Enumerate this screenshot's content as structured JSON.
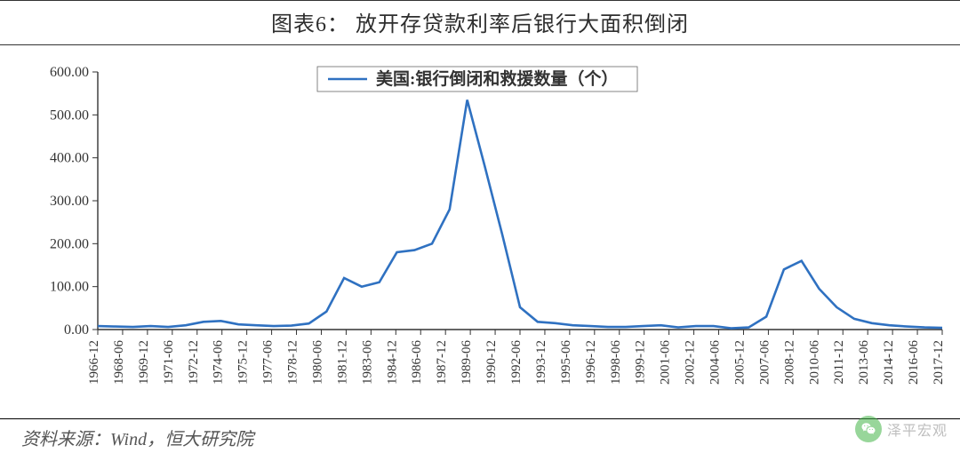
{
  "title": "图表6：   放开存贷款利率后银行大面积倒闭",
  "source": "资料来源：Wind，恒大研究院",
  "watermark": "泽平宏观",
  "chart": {
    "type": "line",
    "background_color": "#ffffff",
    "series_color": "#2f71c1",
    "axis_color": "#333333",
    "title_fontsize": 24,
    "label_fontsize": 16,
    "ylim": [
      0,
      600
    ],
    "ytick_step": 100,
    "yticks": [
      "0.00",
      "100.00",
      "200.00",
      "300.00",
      "400.00",
      "500.00",
      "600.00"
    ],
    "legend_label": "美国:银行倒闭和救援数量（个）",
    "legend_position": "top-center",
    "x_labels": [
      "1966-12",
      "1968-06",
      "1969-12",
      "1971-06",
      "1972-12",
      "1974-06",
      "1975-12",
      "1977-06",
      "1978-12",
      "1980-06",
      "1981-12",
      "1983-06",
      "1984-12",
      "1986-06",
      "1987-12",
      "1989-06",
      "1990-12",
      "1992-06",
      "1993-12",
      "1995-06",
      "1996-12",
      "1998-06",
      "1999-12",
      "2001-06",
      "2002-12",
      "2004-06",
      "2005-12",
      "2007-06",
      "2008-12",
      "2010-06",
      "2011-12",
      "2013-06",
      "2014-12",
      "2016-06",
      "2017-12"
    ],
    "values": [
      8,
      7,
      6,
      8,
      6,
      10,
      18,
      20,
      12,
      10,
      8,
      9,
      14,
      42,
      120,
      100,
      110,
      180,
      185,
      200,
      280,
      535,
      380,
      220,
      52,
      18,
      15,
      10,
      8,
      6,
      6,
      8,
      10,
      5,
      8,
      8,
      3,
      5,
      30,
      140,
      160,
      95,
      52,
      25,
      15,
      10,
      7,
      5,
      4
    ],
    "line_width": 2.6
  }
}
